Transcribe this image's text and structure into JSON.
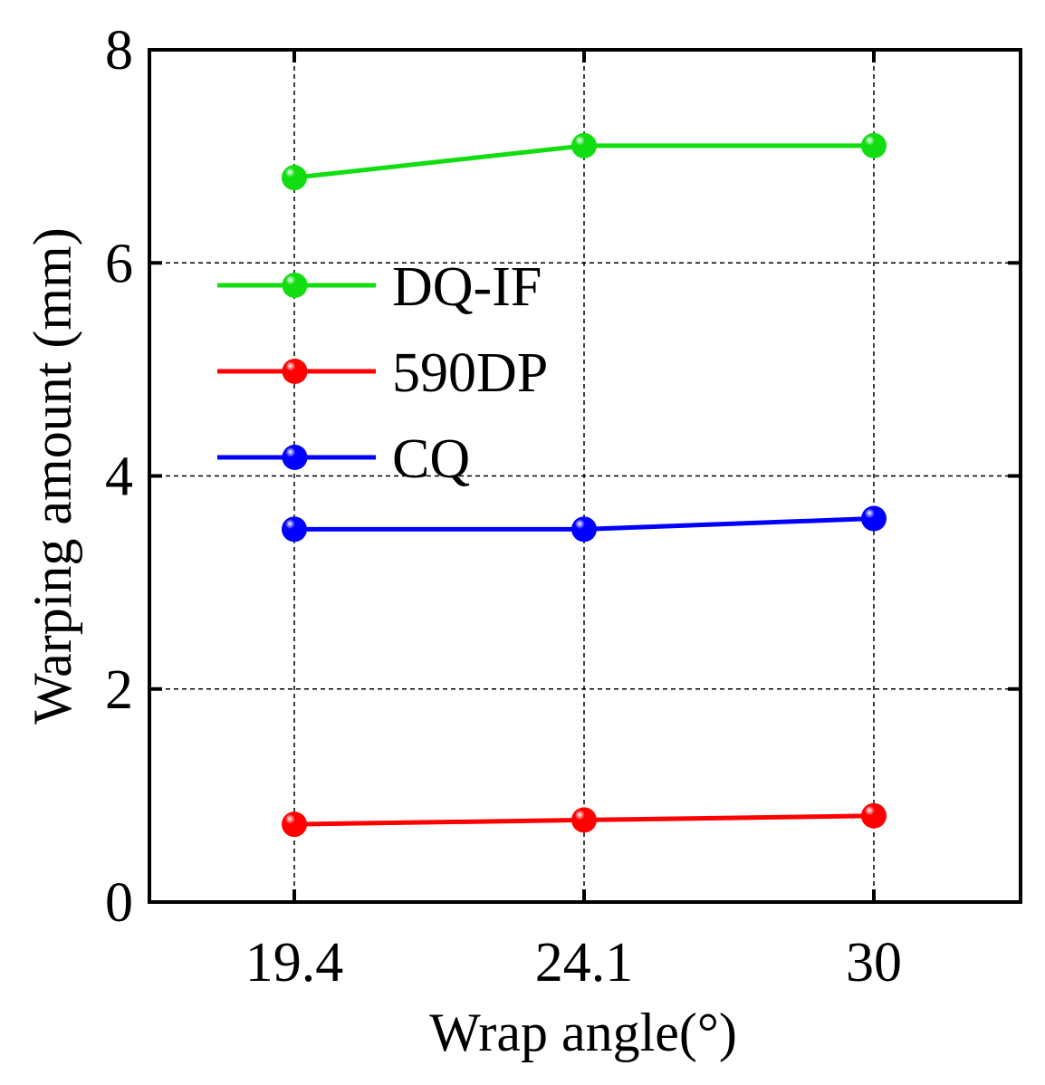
{
  "chart_data": {
    "type": "line",
    "title": "",
    "xlabel": "Wrap angle(°)",
    "ylabel": "Warping amount (mm)",
    "categories": [
      "19.4",
      "24.1",
      "30"
    ],
    "xlim": [
      0,
      3
    ],
    "ylim": [
      0,
      8
    ],
    "yticks": [
      "0",
      "2",
      "4",
      "6",
      "8"
    ],
    "grid": true,
    "legend_position": "upper-left",
    "series": [
      {
        "name": "DQ-IF",
        "color": "#11dd11",
        "values": [
          6.8,
          7.1,
          7.1
        ]
      },
      {
        "name": "590DP",
        "color": "#ff0000",
        "values": [
          0.73,
          0.77,
          0.81
        ]
      },
      {
        "name": "CQ",
        "color": "#0000ff",
        "values": [
          3.5,
          3.5,
          3.6
        ]
      }
    ]
  }
}
